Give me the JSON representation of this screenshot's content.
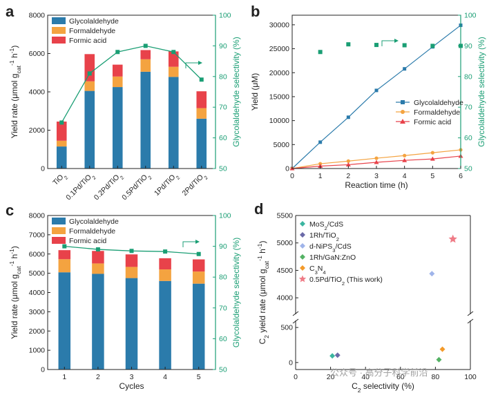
{
  "colors": {
    "glycolaldehyde": "#2b7bab",
    "formaldehyde": "#f4a340",
    "formic": "#e8424a",
    "green": "#1a9e74"
  },
  "watermark": "公众号 · 高分子科学前沿",
  "chart_data": [
    {
      "id": "a",
      "panel_label": "a",
      "type": "bar",
      "stacked": true,
      "categories": [
        "TiO₂",
        "0.1Pd/TiO₂",
        "0.2Pd/TiO₂",
        "0.5Pd/TiO₂",
        "1Pd/TiO₂",
        "2Pd/TiO₂"
      ],
      "category_base": [
        "TiO",
        "0.1Pd/TiO",
        "0.2Pd/TiO",
        "0.5Pd/TiO",
        "1Pd/TiO",
        "2Pd/TiO"
      ],
      "category_sub": [
        "2",
        "2",
        "2",
        "2",
        "2",
        "2"
      ],
      "series": [
        {
          "name": "Glycolaldehyde",
          "values": [
            1150,
            4050,
            4250,
            5050,
            4780,
            2600
          ]
        },
        {
          "name": "Formaldehyde",
          "values": [
            300,
            500,
            550,
            650,
            530,
            550
          ]
        },
        {
          "name": "Formic acid",
          "values": [
            1000,
            1420,
            620,
            480,
            800,
            880
          ]
        }
      ],
      "selectivity": [
        65,
        81,
        88,
        90,
        88,
        79
      ],
      "ylabel": "Yield rate (μmol g⁻¹ h⁻¹)",
      "ylabel_parts": [
        "Yield rate (μmol g",
        "cat",
        "-1",
        " h",
        "-1",
        ")"
      ],
      "y2label": "Glycolaldehyde selectivity (%)",
      "ylim": [
        0,
        8000
      ],
      "yticks": [
        0,
        2000,
        4000,
        6000,
        8000
      ],
      "y2lim": [
        50,
        100
      ],
      "y2ticks": [
        50,
        60,
        70,
        80,
        90,
        100
      ]
    },
    {
      "id": "b",
      "panel_label": "b",
      "type": "line",
      "x": [
        0,
        1,
        2,
        3,
        4,
        5,
        6
      ],
      "series": [
        {
          "name": "Glycolaldehyde",
          "values": [
            0,
            5500,
            10700,
            16300,
            20800,
            25400,
            29900
          ]
        },
        {
          "name": "Formaldehyde",
          "values": [
            0,
            1000,
            1550,
            2150,
            2700,
            3300,
            3900
          ]
        },
        {
          "name": "Formic acid",
          "values": [
            0,
            500,
            800,
            1300,
            1700,
            2000,
            2600
          ]
        }
      ],
      "selectivity_x": [
        1,
        2,
        3,
        4,
        5,
        6
      ],
      "selectivity": [
        88,
        90.5,
        90.3,
        90.2,
        90,
        90
      ],
      "xlabel": "Reaction time (h)",
      "ylabel": "Yield (μM)",
      "y2label": "Glycolaldehyde selectivity (%)",
      "xlim": [
        0,
        6
      ],
      "ylim": [
        0,
        32000
      ],
      "yticks": [
        0,
        5000,
        10000,
        15000,
        20000,
        25000,
        30000
      ],
      "y2lim": [
        50,
        100
      ],
      "y2ticks": [
        50,
        60,
        70,
        80,
        90,
        100
      ]
    },
    {
      "id": "c",
      "panel_label": "c",
      "type": "bar",
      "stacked": true,
      "categories": [
        "1",
        "2",
        "3",
        "4",
        "5"
      ],
      "series": [
        {
          "name": "Glycolaldehyde",
          "values": [
            5050,
            4970,
            4750,
            4600,
            4460
          ]
        },
        {
          "name": "Formaldehyde",
          "values": [
            680,
            540,
            580,
            600,
            630
          ]
        },
        {
          "name": "Formic acid",
          "values": [
            470,
            650,
            650,
            580,
            630
          ]
        }
      ],
      "selectivity": [
        90,
        89,
        88.5,
        88.3,
        87.5
      ],
      "xlabel": "Cycles",
      "ylabel": "Yield rate (μmol g⁻¹ h⁻¹)",
      "ylabel_parts": [
        "Yield rate (μmol g",
        "cat",
        "-1",
        " h",
        "-1",
        ")"
      ],
      "y2label": "Glycolaldehyde selectivity (%)",
      "ylim": [
        0,
        8000
      ],
      "yticks": [
        0,
        1000,
        2000,
        3000,
        4000,
        5000,
        6000,
        7000,
        8000
      ],
      "y2lim": [
        50,
        100
      ],
      "y2ticks": [
        50,
        60,
        70,
        80,
        90,
        100
      ]
    },
    {
      "id": "d",
      "panel_label": "d",
      "type": "scatter",
      "points": [
        {
          "name": "MoS₂/CdS",
          "name_base": "MoS",
          "name_sub": "2",
          "name_tail": "/CdS",
          "x": 21,
          "y": 95,
          "color": "#3bb5a0",
          "marker": "diamond"
        },
        {
          "name": "1Rh/TiO₂",
          "name_base": "1Rh/TiO",
          "name_sub": "2",
          "name_tail": "",
          "x": 24,
          "y": 105,
          "color": "#6b6aa8",
          "marker": "diamond"
        },
        {
          "name": "d-NiPS₃/CdS",
          "name_base": "d-NiPS",
          "name_sub": "3",
          "name_tail": "/CdS",
          "x": 78,
          "y": 4440,
          "color": "#9fb4ea",
          "marker": "diamond"
        },
        {
          "name": "1Rh/GaN:ZnO",
          "name_base": "1Rh/GaN:ZnO",
          "name_sub": "",
          "name_tail": "",
          "x": 82,
          "y": 40,
          "color": "#54b264",
          "marker": "diamond"
        },
        {
          "name": "C₃N₄",
          "name_base": "C",
          "name_sub": "3",
          "name_tail": "N₄",
          "x": 84,
          "y": 190,
          "color": "#f39a2a",
          "marker": "diamond"
        },
        {
          "name": "0.5Pd/TiO₂ (This work)",
          "name_base": "0.5Pd/TiO",
          "name_sub": "2",
          "name_tail": " (This work)",
          "x": 90,
          "y": 5070,
          "color": "#ef7b86",
          "marker": "star"
        }
      ],
      "xlabel": "C₂ selectivity (%)",
      "ylabel": "C₂ yield rate (μmol g⁻¹ h⁻¹)",
      "xlim": [
        0,
        100
      ],
      "xticks": [
        0,
        20,
        40,
        60,
        80,
        100
      ],
      "ylim_lower": [
        -100,
        600
      ],
      "yticks_lower": [
        0,
        500
      ],
      "ylim_upper": [
        3700,
        5500
      ],
      "yticks_upper": [
        4000,
        4500,
        5000,
        5500
      ]
    }
  ],
  "legends": {
    "a": [
      "Glycolaldehyde",
      "Formaldehyde",
      "Formic acid"
    ],
    "b": [
      "Glycolaldehyde",
      "Formaldehyde",
      "Formic acid"
    ],
    "c": [
      "Glycolaldehyde",
      "Formaldehyde",
      "Formic acid"
    ]
  }
}
